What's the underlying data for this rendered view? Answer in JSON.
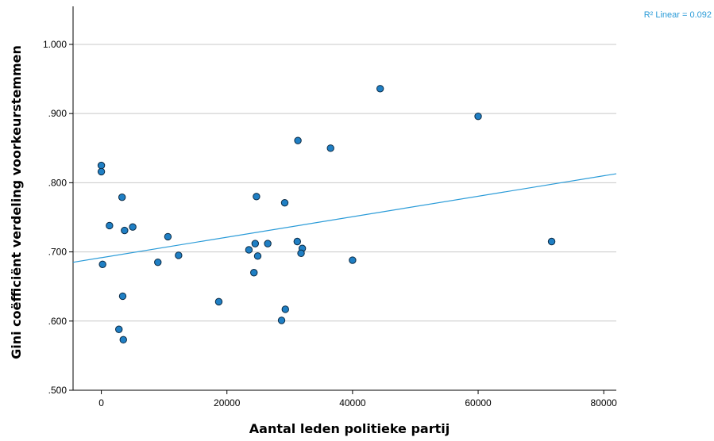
{
  "chart_data": {
    "type": "scatter",
    "title": "",
    "xlabel": "Aantal leden politieke partij",
    "ylabel": "Gini coëfficiënt verdeling voorkeurstemmen",
    "xlim": [
      -4500,
      82000
    ],
    "ylim": [
      0.5,
      1.055
    ],
    "x_ticks": [
      0,
      20000,
      40000,
      60000,
      80000
    ],
    "x_tick_labels": [
      "0",
      "20000",
      "40000",
      "60000",
      "80000"
    ],
    "y_ticks": [
      0.5,
      0.6,
      0.7,
      0.8,
      0.9,
      1.0
    ],
    "y_tick_labels": [
      ".500",
      ".600",
      ".700",
      ".800",
      ".900",
      "1.000"
    ],
    "grid": "horizontal",
    "fit_line": {
      "label": "R² Linear = 0.092",
      "color": "#2a9bd8",
      "x": [
        -4500,
        82000
      ],
      "y": [
        0.685,
        0.813
      ]
    },
    "marker_color": "#1f7fc4",
    "points": [
      {
        "x": 0,
        "y": 0.825
      },
      {
        "x": 0,
        "y": 0.816
      },
      {
        "x": 200,
        "y": 0.682
      },
      {
        "x": 1300,
        "y": 0.738
      },
      {
        "x": 3300,
        "y": 0.779
      },
      {
        "x": 3700,
        "y": 0.731
      },
      {
        "x": 5000,
        "y": 0.736
      },
      {
        "x": 3400,
        "y": 0.636
      },
      {
        "x": 2800,
        "y": 0.588
      },
      {
        "x": 3500,
        "y": 0.573
      },
      {
        "x": 9000,
        "y": 0.685
      },
      {
        "x": 10600,
        "y": 0.722
      },
      {
        "x": 12300,
        "y": 0.695
      },
      {
        "x": 18700,
        "y": 0.628
      },
      {
        "x": 23500,
        "y": 0.703
      },
      {
        "x": 24500,
        "y": 0.712
      },
      {
        "x": 24700,
        "y": 0.78
      },
      {
        "x": 24900,
        "y": 0.694
      },
      {
        "x": 24300,
        "y": 0.67
      },
      {
        "x": 26500,
        "y": 0.712
      },
      {
        "x": 29200,
        "y": 0.771
      },
      {
        "x": 28700,
        "y": 0.601
      },
      {
        "x": 29300,
        "y": 0.617
      },
      {
        "x": 31300,
        "y": 0.861
      },
      {
        "x": 31200,
        "y": 0.715
      },
      {
        "x": 32000,
        "y": 0.705
      },
      {
        "x": 31800,
        "y": 0.698
      },
      {
        "x": 36500,
        "y": 0.85
      },
      {
        "x": 40000,
        "y": 0.688
      },
      {
        "x": 44400,
        "y": 0.936
      },
      {
        "x": 60000,
        "y": 0.896
      },
      {
        "x": 71700,
        "y": 0.715
      }
    ]
  }
}
